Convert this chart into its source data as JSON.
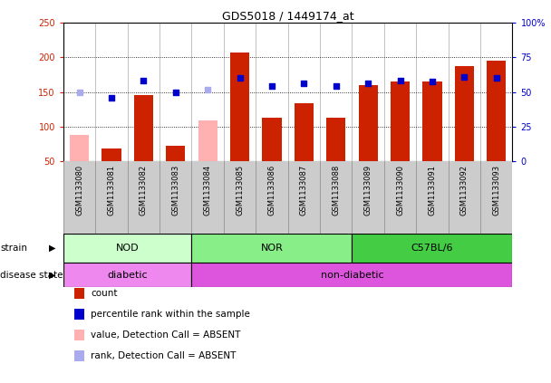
{
  "title": "GDS5018 / 1449174_at",
  "samples": [
    "GSM1133080",
    "GSM1133081",
    "GSM1133082",
    "GSM1133083",
    "GSM1133084",
    "GSM1133085",
    "GSM1133086",
    "GSM1133087",
    "GSM1133088",
    "GSM1133089",
    "GSM1133090",
    "GSM1133091",
    "GSM1133092",
    "GSM1133093"
  ],
  "count_values": [
    null,
    68,
    145,
    72,
    null,
    207,
    113,
    134,
    113,
    160,
    165,
    165,
    187,
    195
  ],
  "count_absent": [
    87,
    null,
    null,
    null,
    108,
    null,
    null,
    null,
    null,
    null,
    null,
    null,
    null,
    null
  ],
  "rank_values": [
    null,
    141,
    167,
    149,
    null,
    170,
    158,
    163,
    158,
    163,
    166,
    165,
    172,
    170
  ],
  "rank_absent": [
    149,
    null,
    null,
    null,
    153,
    null,
    null,
    null,
    null,
    null,
    null,
    null,
    null,
    null
  ],
  "ylim_left": [
    50,
    250
  ],
  "ylim_right": [
    0,
    100
  ],
  "yticks_left": [
    50,
    100,
    150,
    200,
    250
  ],
  "yticks_right": [
    0,
    25,
    50,
    75,
    100
  ],
  "ytick_labels_right": [
    "0",
    "25",
    "50",
    "75",
    "100%"
  ],
  "bar_color_red": "#cc2200",
  "bar_color_pink": "#ffb0b0",
  "dot_color_blue": "#0000cc",
  "dot_color_lightblue": "#aaaaee",
  "strain_groups": [
    {
      "label": "NOD",
      "start": 0,
      "end": 3,
      "color": "#ccffcc"
    },
    {
      "label": "NOR",
      "start": 4,
      "end": 8,
      "color": "#88ee88"
    },
    {
      "label": "C57BL/6",
      "start": 9,
      "end": 13,
      "color": "#44cc44"
    }
  ],
  "disease_groups": [
    {
      "label": "diabetic",
      "start": 0,
      "end": 3,
      "color": "#ee88ee"
    },
    {
      "label": "non-diabetic",
      "start": 4,
      "end": 13,
      "color": "#dd55dd"
    }
  ],
  "strain_label": "strain",
  "disease_label": "disease state",
  "legend_items": [
    {
      "label": "count",
      "color": "#cc2200"
    },
    {
      "label": "percentile rank within the sample",
      "color": "#0000cc"
    },
    {
      "label": "value, Detection Call = ABSENT",
      "color": "#ffb0b0"
    },
    {
      "label": "rank, Detection Call = ABSENT",
      "color": "#aaaaee"
    }
  ],
  "background_color": "#ffffff",
  "tick_area_color": "#cccccc",
  "hgrid_vals": [
    100,
    150,
    200
  ]
}
